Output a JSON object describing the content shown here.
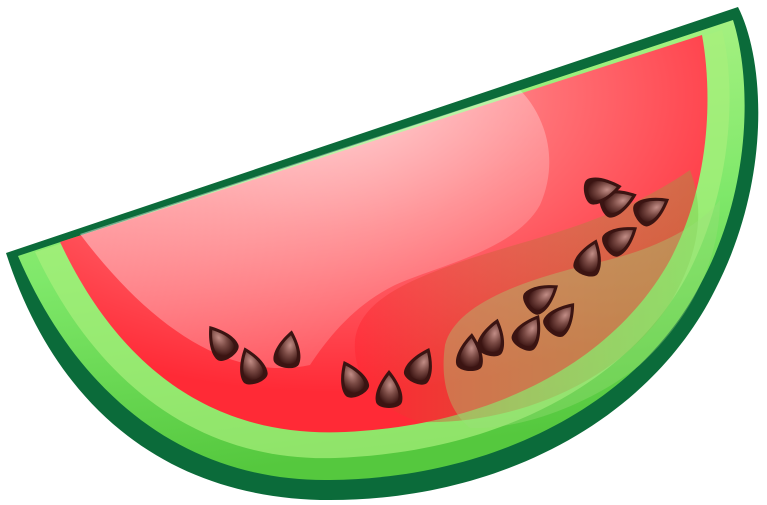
{
  "illustration": {
    "subject": "watermelon-slice",
    "colors": {
      "rind_outer": "#0b6b3a",
      "rind_light": "#9cf26a",
      "rind_mid": "#4fcf3a",
      "flesh_red": "#ff2a36",
      "flesh_pink": "#ffb0b4",
      "seed_dark": "#3b1412",
      "seed_light": "#b07a74"
    },
    "seed_count": 16
  }
}
